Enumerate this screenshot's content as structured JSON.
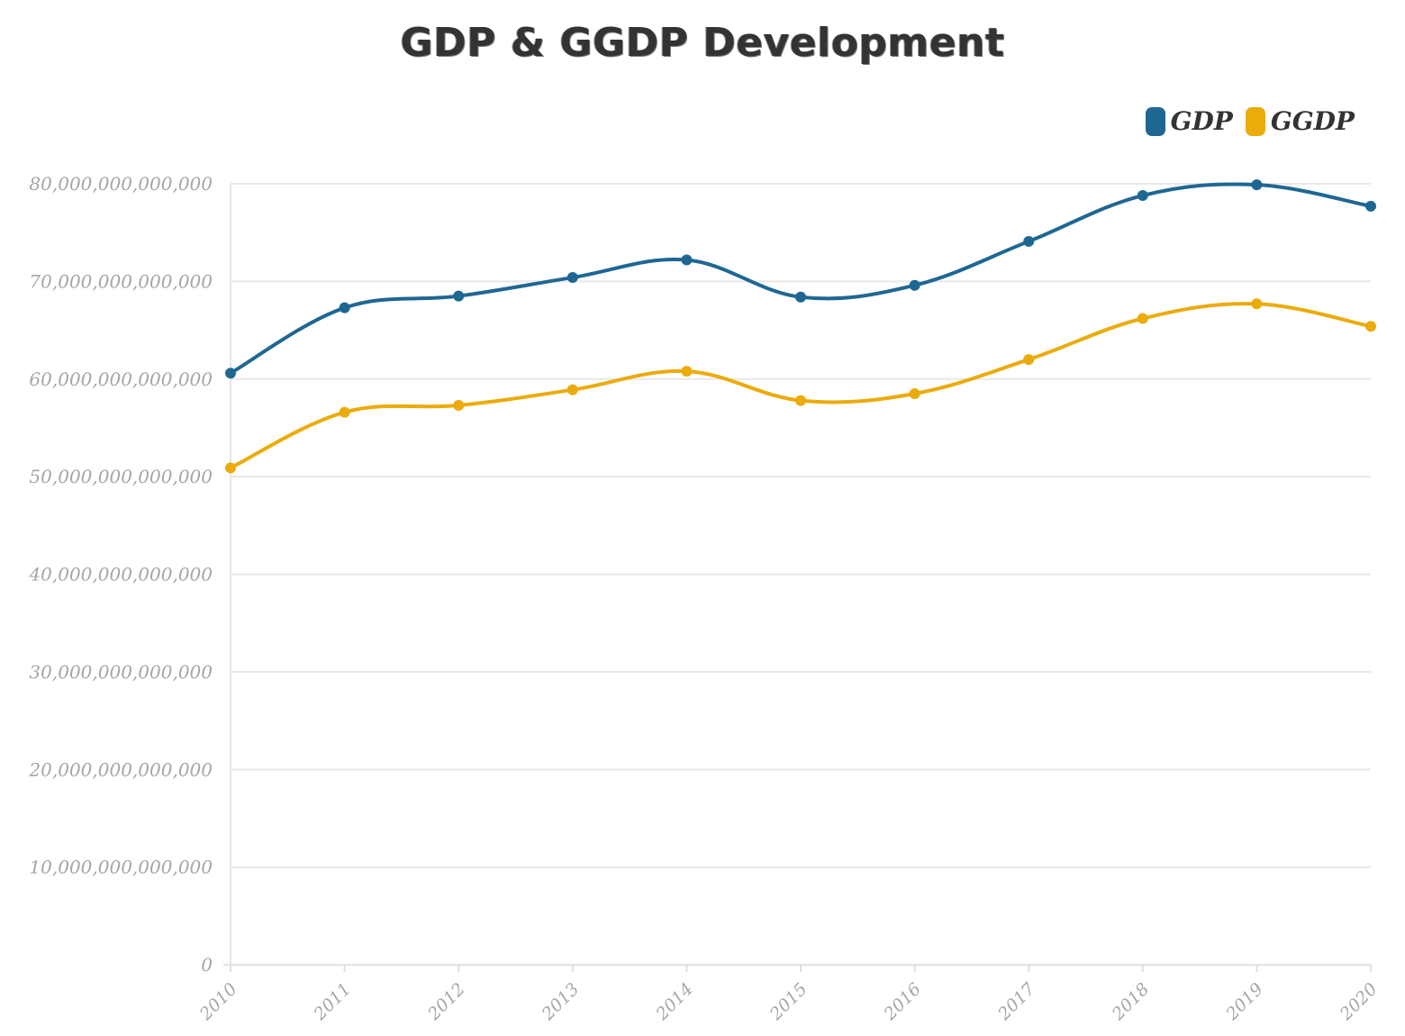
{
  "chart_data": {
    "type": "line",
    "title": "GDP & GGDP Development",
    "x": [
      "2010",
      "2011",
      "2012",
      "2013",
      "2014",
      "2015",
      "2016",
      "2017",
      "2018",
      "2019",
      "2020"
    ],
    "ylim": [
      0,
      80000000000000
    ],
    "y_ticks": [
      0,
      10000000000000,
      20000000000000,
      30000000000000,
      40000000000000,
      50000000000000,
      60000000000000,
      70000000000000,
      80000000000000
    ],
    "y_tick_labels": [
      "0",
      "10,000,000,000,000",
      "20,000,000,000,000",
      "30,000,000,000,000",
      "40,000,000,000,000",
      "50,000,000,000,000",
      "60,000,000,000,000",
      "70,000,000,000,000",
      "80,000,000,000,000"
    ],
    "grid": true,
    "legend_position": "top-right",
    "series": [
      {
        "name": "GDP",
        "color": "#1f6793",
        "values": [
          60600000000000,
          67300000000000,
          68500000000000,
          70400000000000,
          72200000000000,
          68400000000000,
          69600000000000,
          74100000000000,
          78800000000000,
          79900000000000,
          77700000000000
        ]
      },
      {
        "name": "GGDP",
        "color": "#ebab0b",
        "values": [
          50900000000000,
          56600000000000,
          57300000000000,
          58900000000000,
          60800000000000,
          57800000000000,
          58500000000000,
          62000000000000,
          66200000000000,
          67700000000000,
          65400000000000
        ]
      }
    ]
  }
}
